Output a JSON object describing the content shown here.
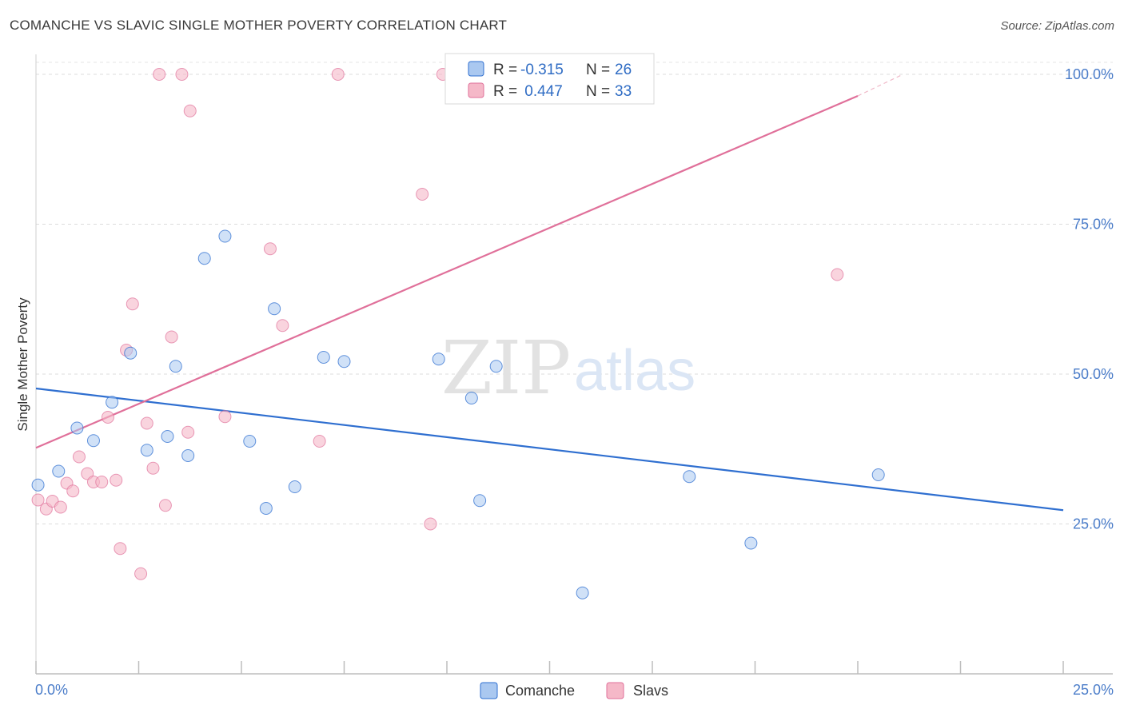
{
  "header": {
    "title": "COMANCHE VS SLAVIC SINGLE MOTHER POVERTY CORRELATION CHART",
    "source": "Source: ZipAtlas.com"
  },
  "watermark": {
    "zip": "ZIP",
    "atlas": "atlas"
  },
  "legend": {
    "items": [
      {
        "r_label": "R =",
        "r_value": "-0.315",
        "n_label": "N =",
        "n_value": "26",
        "color": "#aac8f0"
      },
      {
        "r_label": "R =",
        "r_value": " 0.447",
        "n_label": "N =",
        "n_value": "33",
        "color": "#f5b8c8"
      }
    ]
  },
  "bottom_legend": {
    "comanche": "Comanche",
    "slavs": "Slavs"
  },
  "chart_data": {
    "type": "scatter",
    "title": "COMANCHE VS SLAVIC SINGLE MOTHER POVERTY CORRELATION CHART",
    "xlabel": "",
    "ylabel": "Single Mother Poverty",
    "xlim": [
      0,
      25
    ],
    "ylim": [
      0,
      102
    ],
    "x_tick_labels": [
      "0.0%",
      "25.0%"
    ],
    "y_ticks": [
      25,
      50,
      75,
      100
    ],
    "y_tick_labels": [
      "25.0%",
      "50.0%",
      "75.0%",
      "100.0%"
    ],
    "grid": true,
    "legend_position": "top-center",
    "colors": {
      "comanche": "#2f6fd0",
      "slavs": "#e0709a",
      "comanche_fill": "#aac8f0",
      "slavs_fill": "#f5b8c8"
    },
    "series": [
      {
        "name": "Comanche",
        "points": [
          [
            0.05,
            31.5
          ],
          [
            0.55,
            33.8
          ],
          [
            1.0,
            41.0
          ],
          [
            1.4,
            38.9
          ],
          [
            1.85,
            45.3
          ],
          [
            2.3,
            53.5
          ],
          [
            2.7,
            37.3
          ],
          [
            3.2,
            39.6
          ],
          [
            3.4,
            51.3
          ],
          [
            3.7,
            36.4
          ],
          [
            4.1,
            69.3
          ],
          [
            4.6,
            73.0
          ],
          [
            5.2,
            38.8
          ],
          [
            5.6,
            27.6
          ],
          [
            5.8,
            60.9
          ],
          [
            6.3,
            31.2
          ],
          [
            7.0,
            52.8
          ],
          [
            7.5,
            52.1
          ],
          [
            9.8,
            52.5
          ],
          [
            10.6,
            46.0
          ],
          [
            10.8,
            28.9
          ],
          [
            11.2,
            51.3
          ],
          [
            13.3,
            13.5
          ],
          [
            15.9,
            32.9
          ],
          [
            17.4,
            21.8
          ],
          [
            20.5,
            33.2
          ]
        ],
        "trend": [
          [
            0,
            47.6
          ],
          [
            25,
            27.3
          ]
        ]
      },
      {
        "name": "Slavs",
        "points": [
          [
            0.05,
            29.0
          ],
          [
            0.25,
            27.5
          ],
          [
            0.4,
            28.8
          ],
          [
            0.6,
            27.8
          ],
          [
            0.75,
            31.8
          ],
          [
            0.9,
            30.5
          ],
          [
            1.05,
            36.2
          ],
          [
            1.25,
            33.4
          ],
          [
            1.4,
            32.0
          ],
          [
            1.6,
            32.0
          ],
          [
            1.75,
            42.8
          ],
          [
            1.95,
            32.3
          ],
          [
            2.05,
            20.9
          ],
          [
            2.2,
            54.0
          ],
          [
            2.35,
            61.7
          ],
          [
            2.55,
            16.7
          ],
          [
            2.7,
            41.8
          ],
          [
            2.85,
            34.3
          ],
          [
            3.0,
            100.0
          ],
          [
            3.15,
            28.1
          ],
          [
            3.3,
            56.2
          ],
          [
            3.55,
            100.0
          ],
          [
            3.7,
            40.3
          ],
          [
            3.75,
            93.9
          ],
          [
            4.6,
            42.9
          ],
          [
            5.7,
            70.9
          ],
          [
            6.0,
            58.1
          ],
          [
            6.9,
            38.8
          ],
          [
            7.35,
            100.0
          ],
          [
            9.4,
            80.0
          ],
          [
            9.6,
            25.0
          ],
          [
            9.9,
            100.0
          ],
          [
            19.5,
            66.6
          ]
        ],
        "trend": [
          [
            0,
            37.7
          ],
          [
            20,
            96.4
          ]
        ],
        "trend_dashed": [
          [
            20,
            96.4
          ],
          [
            21.1,
            100.0
          ]
        ]
      }
    ]
  }
}
